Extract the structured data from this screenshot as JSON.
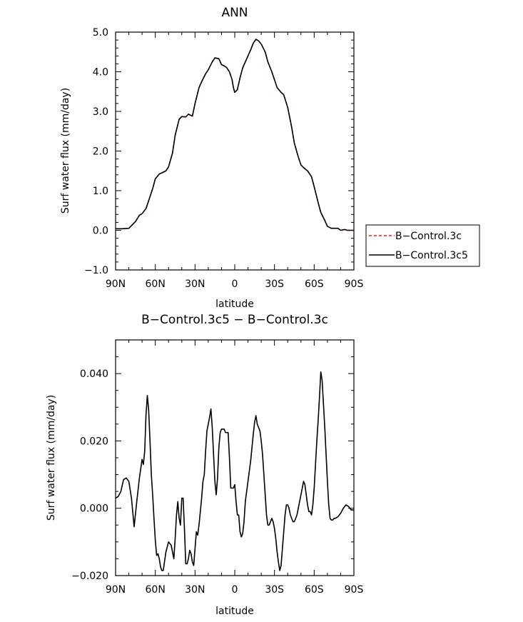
{
  "chart_data": [
    {
      "type": "line",
      "title": "ANN",
      "xlabel": "latitude",
      "ylabel": "Surf water flux (mm/day)",
      "xlim": [
        90,
        -90
      ],
      "ylim": [
        -1.0,
        5.0
      ],
      "x_ticks": [
        90,
        60,
        30,
        0,
        -30,
        -60,
        -90
      ],
      "x_tick_labels": [
        "90N",
        "60N",
        "30N",
        "0",
        "30S",
        "60S",
        "90S"
      ],
      "y_ticks": [
        -1.0,
        0.0,
        1.0,
        2.0,
        3.0,
        4.0,
        5.0
      ],
      "y_tick_labels": [
        "−1.0",
        "0.0",
        "1.0",
        "2.0",
        "3.0",
        "4.0",
        "5.0"
      ],
      "legend_position": "right",
      "x": [
        90,
        85,
        80,
        75,
        72,
        70,
        67,
        65,
        62,
        60,
        57,
        55,
        52,
        50,
        47,
        45,
        42,
        40,
        37,
        35,
        32,
        30,
        27,
        25,
        22,
        20,
        17,
        15,
        12,
        10,
        8,
        6,
        4,
        2,
        1,
        0,
        -2,
        -4,
        -6,
        -8,
        -10,
        -12,
        -14,
        -16,
        -18,
        -20,
        -23,
        -25,
        -28,
        -30,
        -32,
        -35,
        -37,
        -40,
        -43,
        -45,
        -48,
        -50,
        -52,
        -55,
        -58,
        -60,
        -63,
        -65,
        -68,
        -70,
        -73,
        -75,
        -78,
        -80,
        -83,
        -85,
        -88,
        -90
      ],
      "series": [
        {
          "name": "B−Control.3c",
          "color": "#e8221b",
          "dash": "dashed",
          "values": [
            0.04,
            0.04,
            0.05,
            0.22,
            0.38,
            0.42,
            0.55,
            0.75,
            1.05,
            1.3,
            1.42,
            1.45,
            1.5,
            1.6,
            1.95,
            2.4,
            2.8,
            2.87,
            2.86,
            2.93,
            2.88,
            3.2,
            3.6,
            3.75,
            3.95,
            4.05,
            4.25,
            4.35,
            4.33,
            4.18,
            4.15,
            4.1,
            4.0,
            3.8,
            3.6,
            3.48,
            3.55,
            3.85,
            4.1,
            4.25,
            4.4,
            4.55,
            4.72,
            4.82,
            4.78,
            4.7,
            4.5,
            4.25,
            4.0,
            3.8,
            3.6,
            3.48,
            3.42,
            3.1,
            2.6,
            2.2,
            1.85,
            1.65,
            1.58,
            1.5,
            1.35,
            1.1,
            0.7,
            0.45,
            0.25,
            0.1,
            0.05,
            0.05,
            0.05,
            0.0,
            0.02,
            0.0,
            0.0,
            0.0
          ]
        },
        {
          "name": "B−Control.3c5",
          "color": "#000000",
          "dash": "solid",
          "values": [
            0.04,
            0.04,
            0.05,
            0.22,
            0.38,
            0.42,
            0.55,
            0.75,
            1.05,
            1.3,
            1.42,
            1.45,
            1.5,
            1.6,
            1.95,
            2.4,
            2.8,
            2.87,
            2.86,
            2.93,
            2.88,
            3.2,
            3.6,
            3.75,
            3.95,
            4.05,
            4.25,
            4.35,
            4.33,
            4.18,
            4.15,
            4.1,
            4.0,
            3.8,
            3.6,
            3.48,
            3.55,
            3.85,
            4.1,
            4.25,
            4.4,
            4.55,
            4.72,
            4.82,
            4.78,
            4.7,
            4.5,
            4.25,
            4.0,
            3.8,
            3.6,
            3.48,
            3.42,
            3.1,
            2.6,
            2.2,
            1.85,
            1.65,
            1.58,
            1.5,
            1.35,
            1.1,
            0.7,
            0.45,
            0.25,
            0.1,
            0.05,
            0.05,
            0.05,
            0.0,
            0.02,
            0.0,
            0.0,
            0.0
          ]
        }
      ]
    },
    {
      "type": "line",
      "title": "B−Control.3c5 − B−Control.3c",
      "xlabel": "latitude",
      "ylabel": "Surf water flux (mm/day)",
      "xlim": [
        90,
        -90
      ],
      "ylim": [
        -0.02,
        0.05
      ],
      "x_ticks": [
        90,
        60,
        30,
        0,
        -30,
        -60,
        -90
      ],
      "x_tick_labels": [
        "90N",
        "60N",
        "30N",
        "0",
        "30S",
        "60S",
        "90S"
      ],
      "y_ticks": [
        -0.02,
        0.0,
        0.02,
        0.04
      ],
      "y_tick_labels": [
        "−0.020",
        "0.000",
        "0.020",
        "0.040"
      ],
      "series": [
        {
          "name": "",
          "color": "#000000",
          "dash": "solid",
          "x": [
            90,
            88,
            86,
            84,
            82,
            80,
            78,
            76,
            74,
            72,
            70,
            69,
            68,
            67,
            66,
            65,
            64,
            63,
            62,
            61,
            60,
            59,
            58,
            57,
            56,
            55,
            54,
            52,
            50,
            48,
            46,
            45,
            44,
            43,
            42,
            41,
            40,
            39,
            38,
            37,
            36,
            35,
            34,
            33,
            32,
            31,
            30,
            29,
            28,
            27,
            26,
            25,
            24,
            23,
            22,
            21,
            20,
            19,
            18,
            17,
            16,
            15,
            14,
            13,
            12,
            11,
            10,
            9,
            8,
            7,
            6,
            5,
            4,
            3,
            2,
            1,
            0,
            -1,
            -2,
            -3,
            -4,
            -5,
            -6,
            -7,
            -8,
            -9,
            -10,
            -11,
            -12,
            -13,
            -14,
            -15,
            -16,
            -17,
            -18,
            -19,
            -20,
            -21,
            -22,
            -23,
            -24,
            -25,
            -26,
            -27,
            -28,
            -29,
            -30,
            -31,
            -32,
            -33,
            -34,
            -35,
            -36,
            -37,
            -38,
            -39,
            -40,
            -41,
            -42,
            -43,
            -44,
            -45,
            -46,
            -47,
            -48,
            -49,
            -50,
            -51,
            -52,
            -53,
            -54,
            -55,
            -56,
            -57,
            -58,
            -59,
            -60,
            -61,
            -62,
            -63,
            -64,
            -65,
            -66,
            -67,
            -68,
            -69,
            -70,
            -71,
            -72,
            -73,
            -74,
            -75,
            -76,
            -78,
            -80,
            -82,
            -84,
            -86,
            -88,
            -90
          ],
          "values": [
            0.003,
            0.0035,
            0.005,
            0.0085,
            0.009,
            0.008,
            0.003,
            -0.0055,
            0.002,
            0.009,
            0.0145,
            0.013,
            0.017,
            0.028,
            0.0335,
            0.029,
            0.02,
            0.01,
            0.004,
            -0.003,
            -0.0095,
            -0.014,
            -0.0135,
            -0.015,
            -0.0175,
            -0.0185,
            -0.0185,
            -0.013,
            -0.01,
            -0.011,
            -0.015,
            -0.009,
            -0.002,
            0.002,
            -0.003,
            -0.005,
            0.003,
            0.003,
            -0.006,
            -0.0165,
            -0.0165,
            -0.015,
            -0.0125,
            -0.0135,
            -0.016,
            -0.017,
            -0.012,
            -0.007,
            -0.008,
            -0.005,
            -0.001,
            0.003,
            0.008,
            0.01,
            0.017,
            0.023,
            0.025,
            0.027,
            0.0295,
            0.024,
            0.016,
            0.008,
            0.004,
            0.009,
            0.018,
            0.0225,
            0.0235,
            0.0235,
            0.0235,
            0.0225,
            0.0225,
            0.0225,
            0.015,
            0.006,
            0.006,
            0.006,
            0.007,
            0.002,
            -0.002,
            -0.002,
            -0.007,
            -0.0085,
            -0.0075,
            -0.004,
            0.002,
            0.005,
            0.008,
            0.011,
            0.014,
            0.018,
            0.022,
            0.0255,
            0.0275,
            0.025,
            0.024,
            0.023,
            0.02,
            0.016,
            0.01,
            0.004,
            -0.002,
            -0.005,
            -0.005,
            -0.004,
            -0.003,
            -0.004,
            -0.006,
            -0.009,
            -0.013,
            -0.016,
            -0.0185,
            -0.017,
            -0.012,
            -0.007,
            -0.002,
            0.001,
            0.001,
            0.0,
            -0.002,
            -0.003,
            -0.004,
            -0.004,
            -0.003,
            -0.002,
            0.0,
            0.002,
            0.004,
            0.006,
            0.008,
            0.007,
            0.004,
            0.001,
            -0.001,
            -0.001,
            -0.002,
            0.001,
            0.006,
            0.013,
            0.02,
            0.026,
            0.033,
            0.0405,
            0.038,
            0.031,
            0.024,
            0.016,
            0.008,
            0.001,
            -0.003,
            -0.0035,
            -0.0035,
            -0.003,
            -0.003,
            -0.0025,
            -0.0015,
            0.0,
            0.001,
            0.0005,
            -0.0005,
            -0.0005
          ]
        }
      ]
    }
  ]
}
